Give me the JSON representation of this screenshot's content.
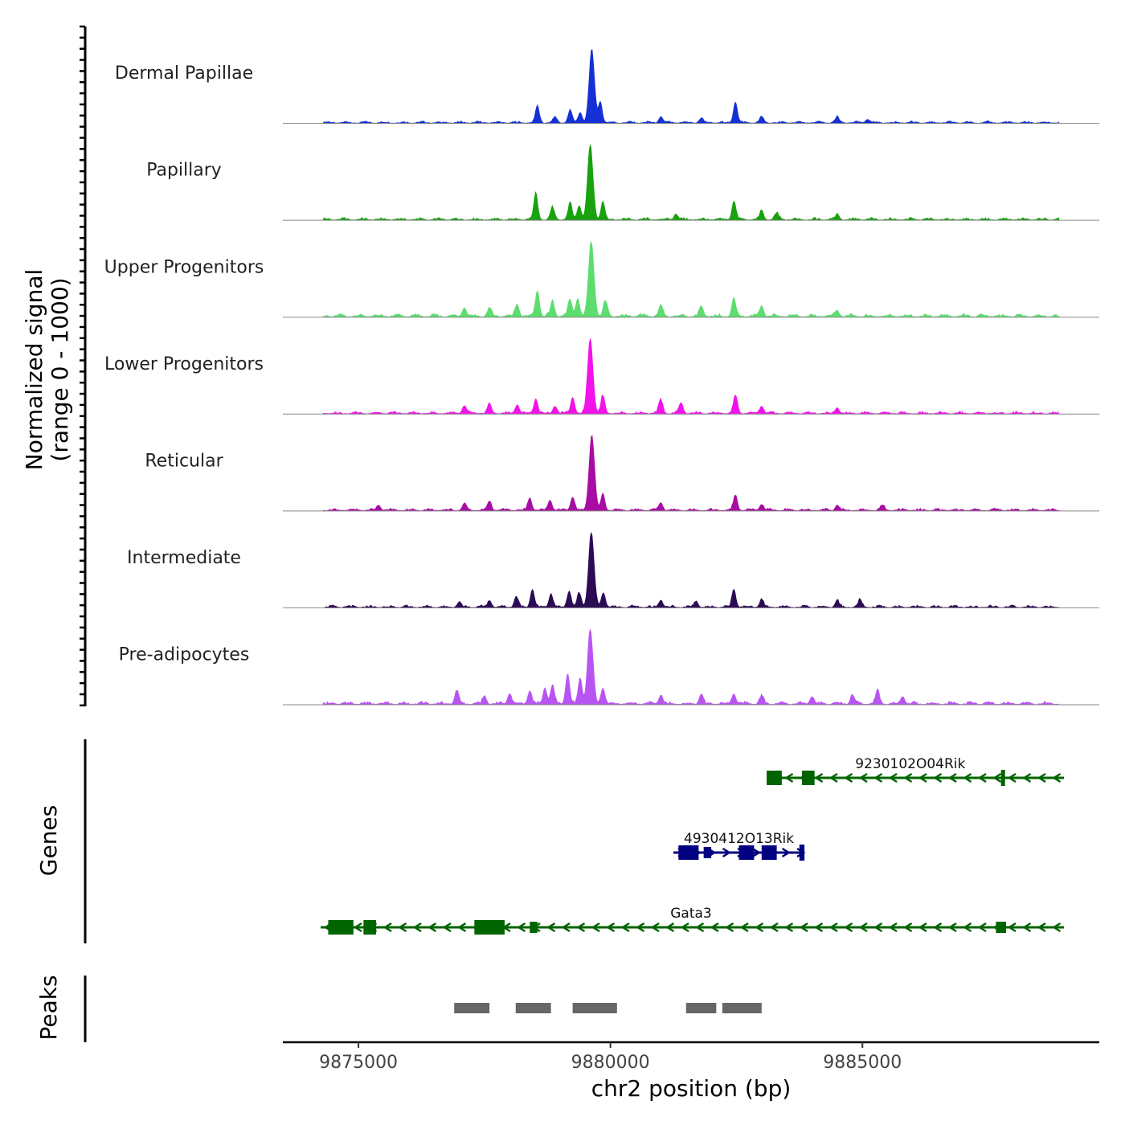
{
  "chart_data": {
    "type": "genome-coverage",
    "chromosome": "chr2",
    "x_range": [
      9873500,
      9889700
    ],
    "x_ticks": [
      9875000,
      9880000,
      9885000
    ],
    "x_tick_labels": [
      "9875000",
      "9880000",
      "9885000"
    ],
    "xlabel": "chr2 position (bp)",
    "coverage_ylabel_line1": "Normalized signal",
    "coverage_ylabel_line2": "(range 0 - 1000)",
    "coverage_range": [
      0,
      1000
    ],
    "genes_label": "Genes",
    "peaks_label": "Peaks",
    "tracks": [
      {
        "name": "Dermal Papillae",
        "color": "#1530d4",
        "peaks": [
          [
            9878550,
            0.22
          ],
          [
            9878900,
            0.07
          ],
          [
            9879200,
            0.17
          ],
          [
            9879400,
            0.14
          ],
          [
            9879630,
            0.96
          ],
          [
            9879800,
            0.28
          ],
          [
            9881000,
            0.08
          ],
          [
            9881800,
            0.06
          ],
          [
            9882480,
            0.28
          ],
          [
            9883000,
            0.07
          ],
          [
            9884500,
            0.07
          ],
          [
            9885100,
            0.05
          ]
        ],
        "baseline": 0.035
      },
      {
        "name": "Papillary",
        "color": "#17a20e",
        "peaks": [
          [
            9878520,
            0.35
          ],
          [
            9878850,
            0.16
          ],
          [
            9879200,
            0.22
          ],
          [
            9879380,
            0.19
          ],
          [
            9879600,
            1.0
          ],
          [
            9879850,
            0.24
          ],
          [
            9881300,
            0.08
          ],
          [
            9882450,
            0.25
          ],
          [
            9883000,
            0.11
          ],
          [
            9883300,
            0.08
          ],
          [
            9884500,
            0.07
          ]
        ],
        "baseline": 0.04
      },
      {
        "name": "Upper Progenitors",
        "color": "#5cdd6e",
        "peaks": [
          [
            9877100,
            0.12
          ],
          [
            9877600,
            0.1
          ],
          [
            9878150,
            0.16
          ],
          [
            9878550,
            0.35
          ],
          [
            9878850,
            0.2
          ],
          [
            9879200,
            0.22
          ],
          [
            9879350,
            0.24
          ],
          [
            9879620,
            1.0
          ],
          [
            9879900,
            0.2
          ],
          [
            9881000,
            0.14
          ],
          [
            9881800,
            0.12
          ],
          [
            9882450,
            0.24
          ],
          [
            9883000,
            0.14
          ],
          [
            9884500,
            0.08
          ]
        ],
        "baseline": 0.05
      },
      {
        "name": "Lower Progenitors",
        "color": "#f212ea",
        "peaks": [
          [
            9877100,
            0.1
          ],
          [
            9877600,
            0.12
          ],
          [
            9878150,
            0.12
          ],
          [
            9878520,
            0.2
          ],
          [
            9878900,
            0.1
          ],
          [
            9879250,
            0.22
          ],
          [
            9879600,
            1.0
          ],
          [
            9879850,
            0.24
          ],
          [
            9881000,
            0.18
          ],
          [
            9881400,
            0.14
          ],
          [
            9882480,
            0.24
          ],
          [
            9883000,
            0.1
          ],
          [
            9884500,
            0.08
          ]
        ],
        "baseline": 0.04
      },
      {
        "name": "Reticular",
        "color": "#a80ca4",
        "peaks": [
          [
            9875400,
            0.07
          ],
          [
            9877100,
            0.08
          ],
          [
            9877600,
            0.12
          ],
          [
            9878400,
            0.16
          ],
          [
            9878800,
            0.14
          ],
          [
            9879250,
            0.18
          ],
          [
            9879630,
            1.0
          ],
          [
            9879850,
            0.22
          ],
          [
            9881000,
            0.1
          ],
          [
            9882480,
            0.2
          ],
          [
            9883000,
            0.08
          ],
          [
            9884500,
            0.07
          ],
          [
            9885400,
            0.06
          ]
        ],
        "baseline": 0.04
      },
      {
        "name": "Intermediate",
        "color": "#2c0b55",
        "peaks": [
          [
            9877000,
            0.07
          ],
          [
            9877600,
            0.09
          ],
          [
            9878130,
            0.14
          ],
          [
            9878450,
            0.24
          ],
          [
            9878820,
            0.18
          ],
          [
            9879180,
            0.22
          ],
          [
            9879380,
            0.19
          ],
          [
            9879620,
            1.0
          ],
          [
            9879860,
            0.2
          ],
          [
            9881000,
            0.1
          ],
          [
            9881700,
            0.08
          ],
          [
            9882450,
            0.24
          ],
          [
            9883000,
            0.1
          ],
          [
            9884500,
            0.09
          ],
          [
            9884950,
            0.1
          ]
        ],
        "baseline": 0.04
      },
      {
        "name": "Pre-adipocytes",
        "color": "#b855f2",
        "peaks": [
          [
            9876950,
            0.18
          ],
          [
            9877500,
            0.1
          ],
          [
            9878000,
            0.14
          ],
          [
            9878400,
            0.18
          ],
          [
            9878700,
            0.22
          ],
          [
            9878850,
            0.25
          ],
          [
            9879150,
            0.4
          ],
          [
            9879400,
            0.34
          ],
          [
            9879600,
            1.0
          ],
          [
            9879850,
            0.22
          ],
          [
            9881000,
            0.12
          ],
          [
            9881800,
            0.12
          ],
          [
            9882450,
            0.14
          ],
          [
            9883000,
            0.1
          ],
          [
            9884000,
            0.1
          ],
          [
            9884800,
            0.12
          ],
          [
            9885300,
            0.18
          ],
          [
            9885800,
            0.1
          ]
        ],
        "baseline": 0.05
      }
    ],
    "genes": [
      {
        "name": "9230102O04Rik",
        "color": "#006400",
        "strand": "-",
        "start": 9883100,
        "end": 9889000,
        "label_x": 9885950,
        "exons": [
          [
            9883100,
            9883400,
            "large"
          ],
          [
            9883800,
            9884050,
            "large"
          ],
          [
            9887750,
            9887820,
            "thin"
          ]
        ],
        "row": 0
      },
      {
        "name": "4930412O13Rik",
        "color": "#000080",
        "strand": "+",
        "start": 9881250,
        "end": 9883850,
        "label_x": 9882550,
        "exons": [
          [
            9881350,
            9881750,
            "large"
          ],
          [
            9881850,
            9882000,
            "medium"
          ],
          [
            9882550,
            9882850,
            "large"
          ],
          [
            9883000,
            9883300,
            "large"
          ],
          [
            9883750,
            9883850,
            "thin"
          ]
        ],
        "row": 1
      },
      {
        "name": "Gata3",
        "color": "#006400",
        "strand": "-",
        "start": 9874250,
        "end": 9889000,
        "label_x": 9881600,
        "exons": [
          [
            9874400,
            9874900,
            "large"
          ],
          [
            9875100,
            9875350,
            "large"
          ],
          [
            9877300,
            9877900,
            "large"
          ],
          [
            9878400,
            9878550,
            "medium"
          ],
          [
            9887650,
            9887850,
            "medium"
          ]
        ],
        "row": 2
      }
    ],
    "peaks": [
      [
        9876900,
        9877600
      ],
      [
        9878120,
        9878820
      ],
      [
        9879250,
        9880130
      ],
      [
        9881500,
        9882100
      ],
      [
        9882220,
        9883000
      ]
    ]
  }
}
